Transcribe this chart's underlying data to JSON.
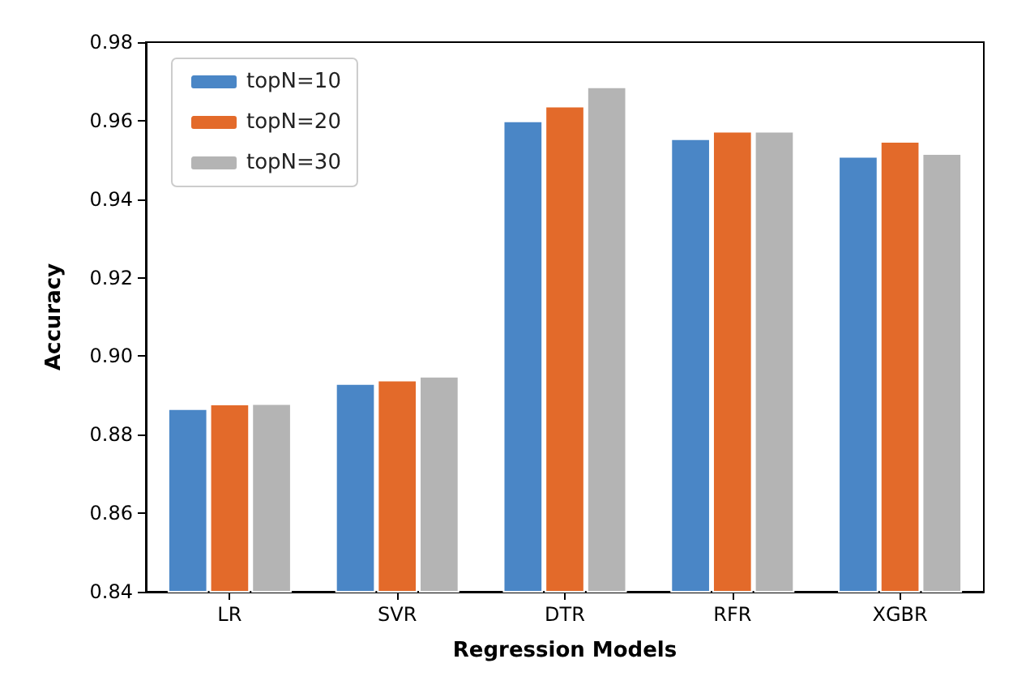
{
  "chart_data": {
    "type": "bar",
    "xlabel": "Regression Models",
    "ylabel": "Accuracy",
    "categories": [
      "LR",
      "SVR",
      "DTR",
      "RFR",
      "XGBR"
    ],
    "series": [
      {
        "name": "topN=10",
        "color": "#4a86c6",
        "values": [
          0.8867,
          0.8931,
          0.96,
          0.9555,
          0.951
        ]
      },
      {
        "name": "topN=20",
        "color": "#e36a2a",
        "values": [
          0.8879,
          0.894,
          0.9638,
          0.9574,
          0.9548
        ]
      },
      {
        "name": "topN=30",
        "color": "#b4b4b4",
        "values": [
          0.888,
          0.895,
          0.9687,
          0.9574,
          0.9517
        ]
      }
    ],
    "ylim": [
      0.84,
      0.98
    ],
    "yticks": [
      0.84,
      0.86,
      0.88,
      {
        "value": 0.9,
        "label": "0.90"
      },
      0.92,
      0.94,
      0.96,
      0.98
    ],
    "grid": false,
    "legend": "top left"
  }
}
